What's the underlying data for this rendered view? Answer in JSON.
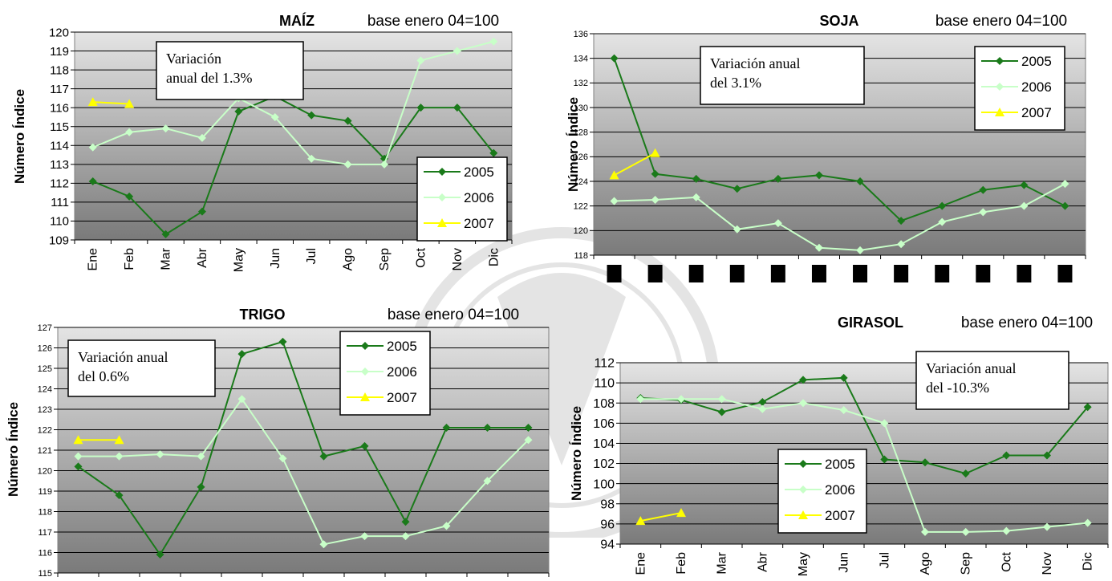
{
  "charts": [
    {
      "type": "line",
      "title": "MAÍZ",
      "subtitle": "base enero 04=100",
      "ylabel": "Número Índice",
      "ylim": [
        109,
        120
      ],
      "yticks": [
        109,
        110,
        111,
        112,
        113,
        114,
        115,
        116,
        117,
        118,
        119,
        120
      ],
      "categories": [
        "Ene",
        "Feb",
        "Mar",
        "Abr",
        "May",
        "Jun",
        "Jul",
        "Ago",
        "Sep",
        "Oct",
        "Nov",
        "Dic"
      ],
      "x_labels_visible": true,
      "annotation": [
        "Variación",
        "anual del  1.3%"
      ],
      "legend_position": "bottom-right",
      "series": [
        {
          "name": "2005",
          "color": "#1a7a1a",
          "marker": "diamond",
          "values": [
            112.1,
            111.3,
            109.3,
            110.5,
            115.8,
            116.6,
            115.6,
            115.3,
            113.3,
            116.0,
            116.0,
            113.6
          ]
        },
        {
          "name": "2006",
          "color": "#c8ffc8",
          "marker": "diamond",
          "values": [
            113.9,
            114.7,
            114.9,
            114.4,
            116.5,
            115.5,
            113.3,
            113.0,
            113.0,
            118.5,
            119.0,
            119.5
          ]
        },
        {
          "name": "2007",
          "color": "#ffff00",
          "marker": "triangle",
          "values": [
            116.3,
            116.2
          ]
        }
      ]
    },
    {
      "type": "line",
      "title": "SOJA",
      "subtitle": "base enero 04=100",
      "ylabel": "Número Índice",
      "ylim": [
        118,
        136
      ],
      "yticks": [
        118,
        120,
        122,
        124,
        126,
        128,
        130,
        132,
        134,
        136
      ],
      "categories": [
        "",
        "",
        "",
        "",
        "",
        "",
        "",
        "",
        "",
        "",
        "",
        ""
      ],
      "x_labels_visible": false,
      "annotation": [
        "Variación anual",
        "del 3.1%"
      ],
      "legend_position": "top-right",
      "series": [
        {
          "name": "2005",
          "color": "#1a7a1a",
          "marker": "diamond",
          "values": [
            134.0,
            124.6,
            124.2,
            123.4,
            124.2,
            124.5,
            124.0,
            120.8,
            122.0,
            123.3,
            123.7,
            122.0
          ]
        },
        {
          "name": "2006",
          "color": "#c8ffc8",
          "marker": "diamond",
          "values": [
            122.4,
            122.5,
            122.7,
            120.1,
            120.6,
            118.6,
            118.4,
            118.9,
            120.7,
            121.5,
            122.0,
            123.8
          ]
        },
        {
          "name": "2007",
          "color": "#ffff00",
          "marker": "triangle",
          "values": [
            124.5,
            126.3
          ]
        }
      ]
    },
    {
      "type": "line",
      "title": "TRIGO",
      "subtitle": "base enero 04=100",
      "ylabel": "Número Índice",
      "ylim": [
        115,
        127
      ],
      "yticks": [
        115,
        116,
        117,
        118,
        119,
        120,
        121,
        122,
        123,
        124,
        125,
        126,
        127
      ],
      "categories": [
        "",
        "",
        "",
        "",
        "",
        "",
        "",
        "",
        "",
        "",
        "",
        ""
      ],
      "x_labels_visible": false,
      "annotation": [
        "Variación  anual",
        "del  0.6%"
      ],
      "legend_position": "top-right",
      "series": [
        {
          "name": "2005",
          "color": "#1a7a1a",
          "marker": "diamond",
          "values": [
            120.2,
            118.8,
            115.9,
            119.2,
            125.7,
            126.3,
            120.7,
            121.2,
            117.5,
            122.1,
            122.1,
            122.1
          ]
        },
        {
          "name": "2006",
          "color": "#c8ffc8",
          "marker": "diamond",
          "values": [
            120.7,
            120.7,
            120.8,
            120.7,
            123.5,
            120.6,
            116.4,
            116.8,
            116.8,
            117.3,
            119.5,
            121.5
          ]
        },
        {
          "name": "2007",
          "color": "#ffff00",
          "marker": "triangle",
          "values": [
            121.5,
            121.5
          ]
        }
      ]
    },
    {
      "type": "line",
      "title": "GIRASOL",
      "subtitle": "base enero 04=100",
      "ylabel": "Número Índice",
      "ylim": [
        94,
        112
      ],
      "yticks": [
        94,
        96,
        98,
        100,
        102,
        104,
        106,
        108,
        110,
        112
      ],
      "categories": [
        "Ene",
        "Feb",
        "Mar",
        "Abr",
        "May",
        "Jun",
        "Jul",
        "Ago",
        "Sep",
        "Oct",
        "Nov",
        "Dic"
      ],
      "x_labels_visible": true,
      "annotation": [
        "Variación anual",
        "del -10.3%"
      ],
      "legend_position": "bottom-left",
      "series": [
        {
          "name": "2005",
          "color": "#1a7a1a",
          "marker": "diamond",
          "values": [
            108.5,
            108.3,
            107.1,
            108.1,
            110.3,
            110.5,
            102.4,
            102.1,
            101.0,
            102.8,
            102.8,
            107.6
          ]
        },
        {
          "name": "2006",
          "color": "#c8ffc8",
          "marker": "diamond",
          "values": [
            108.4,
            108.4,
            108.4,
            107.4,
            108.0,
            107.3,
            106.0,
            95.2,
            95.2,
            95.3,
            95.7,
            96.1
          ]
        },
        {
          "name": "2007",
          "color": "#ffff00",
          "marker": "triangle",
          "values": [
            96.3,
            97.1
          ]
        }
      ]
    }
  ]
}
